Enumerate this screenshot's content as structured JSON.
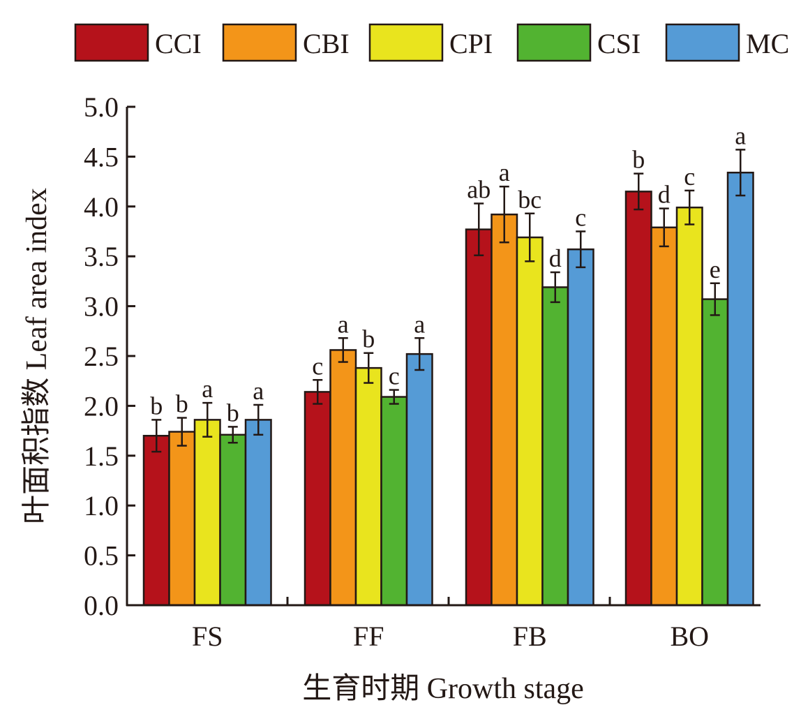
{
  "chart_data": {
    "type": "bar",
    "title": "",
    "xlabel": "生育时期 Growth stage",
    "ylabel": "叶面积指数 Leaf area index",
    "ylim": [
      0,
      5.0
    ],
    "yticks": [
      "0.0",
      "0.5",
      "1.0",
      "1.5",
      "2.0",
      "2.5",
      "3.0",
      "3.5",
      "4.0",
      "4.5",
      "5.0"
    ],
    "ytick_values": [
      0,
      0.5,
      1.0,
      1.5,
      2.0,
      2.5,
      3.0,
      3.5,
      4.0,
      4.5,
      5.0
    ],
    "categories": [
      "FS",
      "FF",
      "FB",
      "BO"
    ],
    "legend_position": "top",
    "grid": false,
    "series": [
      {
        "name": "CCI",
        "color": "#B5121B",
        "values": [
          1.7,
          2.14,
          3.77,
          4.15
        ],
        "errors": [
          0.16,
          0.12,
          0.26,
          0.18
        ],
        "labels": [
          "b",
          "c",
          "ab",
          "b"
        ]
      },
      {
        "name": "CBI",
        "color": "#F39519",
        "values": [
          1.74,
          2.56,
          3.92,
          3.79
        ],
        "errors": [
          0.14,
          0.12,
          0.28,
          0.19
        ],
        "labels": [
          "b",
          "a",
          "a",
          "d"
        ]
      },
      {
        "name": "CPI",
        "color": "#E9E41E",
        "values": [
          1.86,
          2.38,
          3.69,
          3.99
        ],
        "errors": [
          0.17,
          0.15,
          0.24,
          0.17
        ],
        "labels": [
          "a",
          "b",
          "bc",
          "c"
        ]
      },
      {
        "name": "CSI",
        "color": "#52B331",
        "values": [
          1.71,
          2.09,
          3.19,
          3.07
        ],
        "errors": [
          0.08,
          0.07,
          0.15,
          0.16
        ],
        "labels": [
          "b",
          "c",
          "d",
          "e"
        ]
      },
      {
        "name": "MC",
        "color": "#559BD6",
        "values": [
          1.86,
          2.52,
          3.57,
          4.34
        ],
        "errors": [
          0.15,
          0.16,
          0.18,
          0.23
        ],
        "labels": [
          "a",
          "a",
          "c",
          "a"
        ]
      }
    ]
  }
}
